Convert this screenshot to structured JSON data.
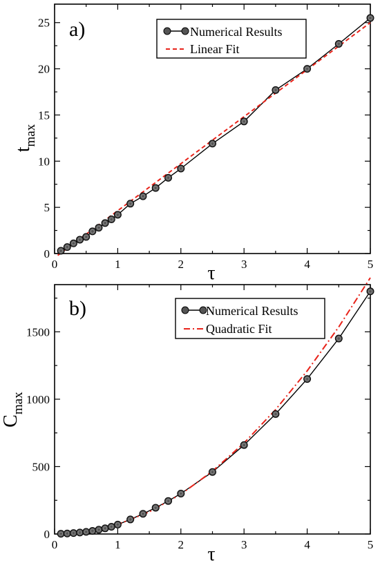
{
  "chart_data": [
    {
      "type": "line",
      "panel_label": "a)",
      "xlabel": "τ",
      "ylabel": "t",
      "ylabel_sub": "max",
      "xlim": [
        0,
        5
      ],
      "ylim": [
        0,
        27
      ],
      "xticks": [
        0,
        1,
        2,
        3,
        4,
        5
      ],
      "yticks": [
        0,
        5,
        10,
        15,
        20,
        25
      ],
      "grid": false,
      "legend_position": "top-right",
      "legend": [
        "Numerical Results",
        "Linear Fit"
      ],
      "series": [
        {
          "name": "Numerical Results",
          "style": "markers+line",
          "color": "#000000",
          "marker_color": "#555555",
          "x": [
            0.1,
            0.2,
            0.3,
            0.4,
            0.5,
            0.6,
            0.7,
            0.8,
            0.9,
            1.0,
            1.2,
            1.4,
            1.6,
            1.8,
            2.0,
            2.5,
            3.0,
            3.5,
            4.0,
            4.5,
            5.0
          ],
          "y": [
            0.3,
            0.7,
            1.1,
            1.5,
            1.8,
            2.4,
            2.8,
            3.3,
            3.7,
            4.2,
            5.4,
            6.2,
            7.1,
            8.2,
            9.2,
            11.9,
            14.3,
            17.7,
            20.0,
            22.7,
            25.5
          ]
        },
        {
          "name": "Linear Fit",
          "style": "dashed",
          "color": "#e8231a",
          "x": [
            0.05,
            5.0
          ],
          "y": [
            -0.2,
            25.0
          ]
        }
      ]
    },
    {
      "type": "line",
      "panel_label": "b)",
      "xlabel": "τ",
      "ylabel": "C",
      "ylabel_sub": "max",
      "xlim": [
        0,
        5
      ],
      "ylim": [
        0,
        1850
      ],
      "xticks": [
        0,
        1,
        2,
        3,
        4,
        5
      ],
      "yticks": [
        0,
        500,
        1000,
        1500
      ],
      "grid": false,
      "legend_position": "top-right",
      "legend": [
        "Numerical Results",
        "Quadratic Fit"
      ],
      "series": [
        {
          "name": "Numerical Results",
          "style": "markers+line",
          "color": "#000000",
          "marker_color": "#555555",
          "x": [
            0.1,
            0.2,
            0.3,
            0.4,
            0.5,
            0.6,
            0.7,
            0.8,
            0.9,
            1.0,
            1.2,
            1.4,
            1.6,
            1.8,
            2.0,
            2.5,
            3.0,
            3.5,
            4.0,
            4.5,
            5.0
          ],
          "y": [
            2,
            4,
            7,
            11,
            16,
            23,
            32,
            42,
            54,
            70,
            108,
            150,
            195,
            245,
            300,
            460,
            660,
            890,
            1150,
            1450,
            1800
          ]
        },
        {
          "name": "Quadratic Fit",
          "style": "dashdot",
          "color": "#e8231a",
          "x": [
            0.1,
            0.5,
            1.0,
            1.5,
            2.0,
            2.5,
            3.0,
            3.5,
            4.0,
            4.5,
            5.0
          ],
          "y": [
            1,
            17,
            71,
            164,
            295,
            466,
            675,
            923,
            1210,
            1536,
            1901
          ]
        }
      ]
    }
  ]
}
